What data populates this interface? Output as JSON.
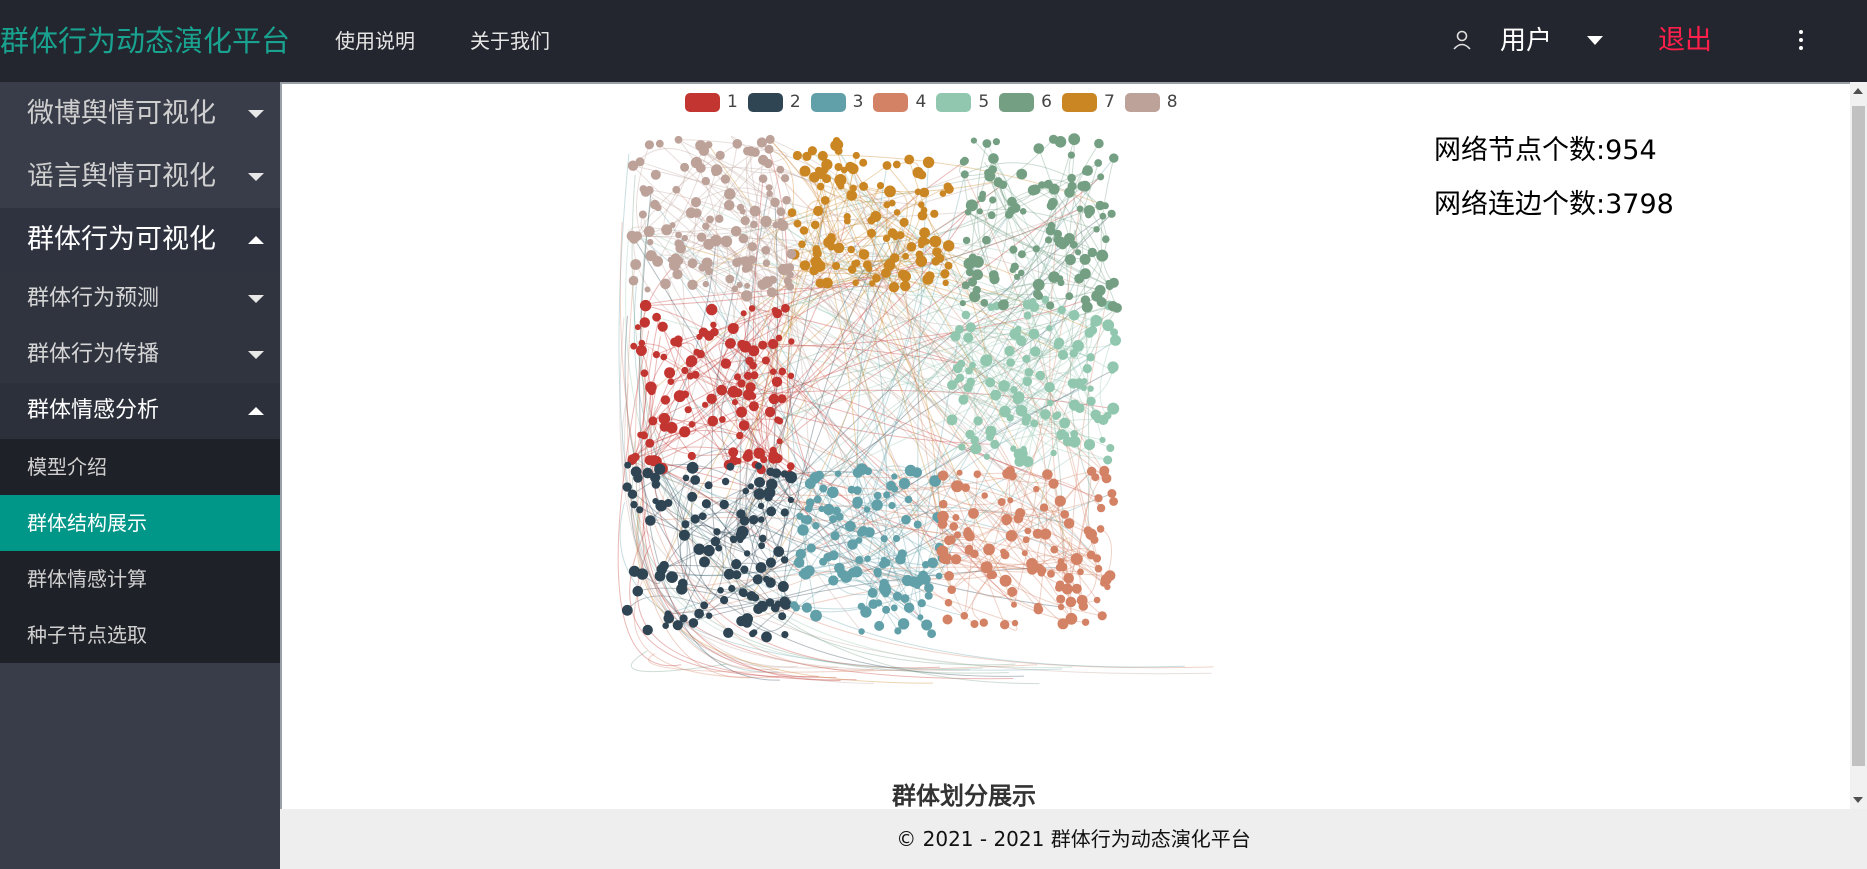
{
  "header": {
    "brand": "群体行为动态演化平台",
    "nav": [
      "使用说明",
      "关于我们"
    ],
    "user_label": "用户",
    "logout_label": "退出"
  },
  "sidebar": {
    "sections": [
      {
        "label": "微博舆情可视化",
        "expanded": false
      },
      {
        "label": "谣言舆情可视化",
        "expanded": false
      },
      {
        "label": "群体行为可视化",
        "expanded": true
      }
    ],
    "subsections": [
      {
        "label": "群体行为预测",
        "expanded": false
      },
      {
        "label": "群体行为传播",
        "expanded": false
      },
      {
        "label": "群体情感分析",
        "expanded": true
      }
    ],
    "leaves": [
      {
        "label": "模型介绍",
        "active": false
      },
      {
        "label": "群体结构展示",
        "active": true
      },
      {
        "label": "群体情感计算",
        "active": false
      },
      {
        "label": "种子节点选取",
        "active": false
      }
    ]
  },
  "main": {
    "stats": {
      "nodes": "网络节点个数:954",
      "edges": "网络连边个数:3798"
    }
  },
  "chart_data": {
    "type": "graph",
    "title": "群体划分展示",
    "legend": [
      {
        "name": "1",
        "color": "#c23531"
      },
      {
        "name": "2",
        "color": "#2f4554"
      },
      {
        "name": "3",
        "color": "#61a0a8"
      },
      {
        "name": "4",
        "color": "#d48265"
      },
      {
        "name": "5",
        "color": "#91c7ae"
      },
      {
        "name": "6",
        "color": "#749f83"
      },
      {
        "name": "7",
        "color": "#ca8622"
      },
      {
        "name": "8",
        "color": "#bda29a"
      }
    ],
    "node_count": 954,
    "edge_count": 3798
  },
  "footer": {
    "text": "© 2021 - 2021 群体行为动态演化平台"
  }
}
